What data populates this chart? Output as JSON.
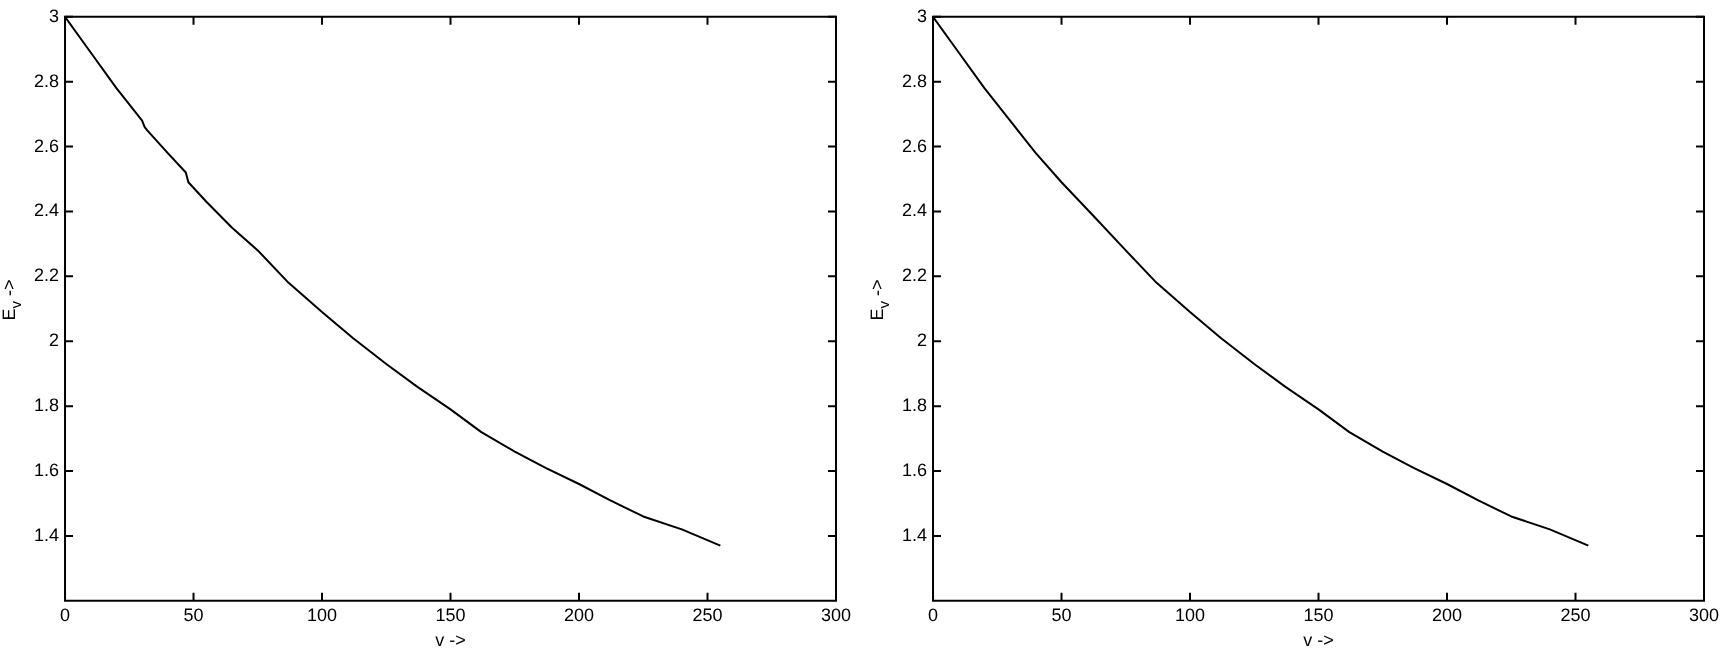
{
  "chart_data": [
    {
      "type": "line",
      "xlabel": "v ->",
      "ylabel": "E$_{v}$ ->",
      "x": [
        0,
        10,
        20,
        30,
        31,
        32,
        40,
        47,
        48,
        55,
        65,
        75,
        87,
        100,
        112,
        125,
        137,
        150,
        162,
        175,
        187,
        200,
        212,
        225,
        240,
        255
      ],
      "series": [
        {
          "color": "#000000",
          "values": [
            3.0,
            2.89,
            2.78,
            2.68,
            2.66,
            2.65,
            2.58,
            2.52,
            2.49,
            2.43,
            2.35,
            2.28,
            2.18,
            2.09,
            2.01,
            1.93,
            1.86,
            1.79,
            1.72,
            1.66,
            1.61,
            1.56,
            1.51,
            1.46,
            1.42,
            1.37
          ]
        }
      ],
      "xlim": [
        0,
        300
      ],
      "xticks": [
        0,
        50,
        100,
        150,
        200,
        250,
        300
      ],
      "ylim": [
        1.2,
        3
      ],
      "yticks": [
        1.4,
        1.6,
        1.8,
        2,
        2.2,
        2.4,
        2.6,
        2.8,
        3
      ],
      "grid": false,
      "legend": false,
      "marker": "none",
      "line_style": "solid"
    },
    {
      "type": "line",
      "xlabel": "v ->",
      "ylabel": "E$_{v}$ ->",
      "x": [
        0,
        10,
        20,
        30,
        40,
        50,
        62,
        75,
        87,
        100,
        112,
        125,
        137,
        150,
        162,
        175,
        187,
        200,
        212,
        225,
        240,
        255
      ],
      "series": [
        {
          "color": "#000000",
          "values": [
            3.0,
            2.89,
            2.78,
            2.68,
            2.58,
            2.49,
            2.39,
            2.28,
            2.18,
            2.09,
            2.01,
            1.93,
            1.86,
            1.79,
            1.72,
            1.66,
            1.61,
            1.56,
            1.51,
            1.46,
            1.42,
            1.37
          ]
        }
      ],
      "xlim": [
        0,
        300
      ],
      "xticks": [
        0,
        50,
        100,
        150,
        200,
        250,
        300
      ],
      "ylim": [
        1.2,
        3
      ],
      "yticks": [
        1.4,
        1.6,
        1.8,
        2,
        2.2,
        2.4,
        2.6,
        2.8,
        3
      ],
      "grid": false,
      "legend": false,
      "marker": "none",
      "line_style": "solid"
    }
  ]
}
